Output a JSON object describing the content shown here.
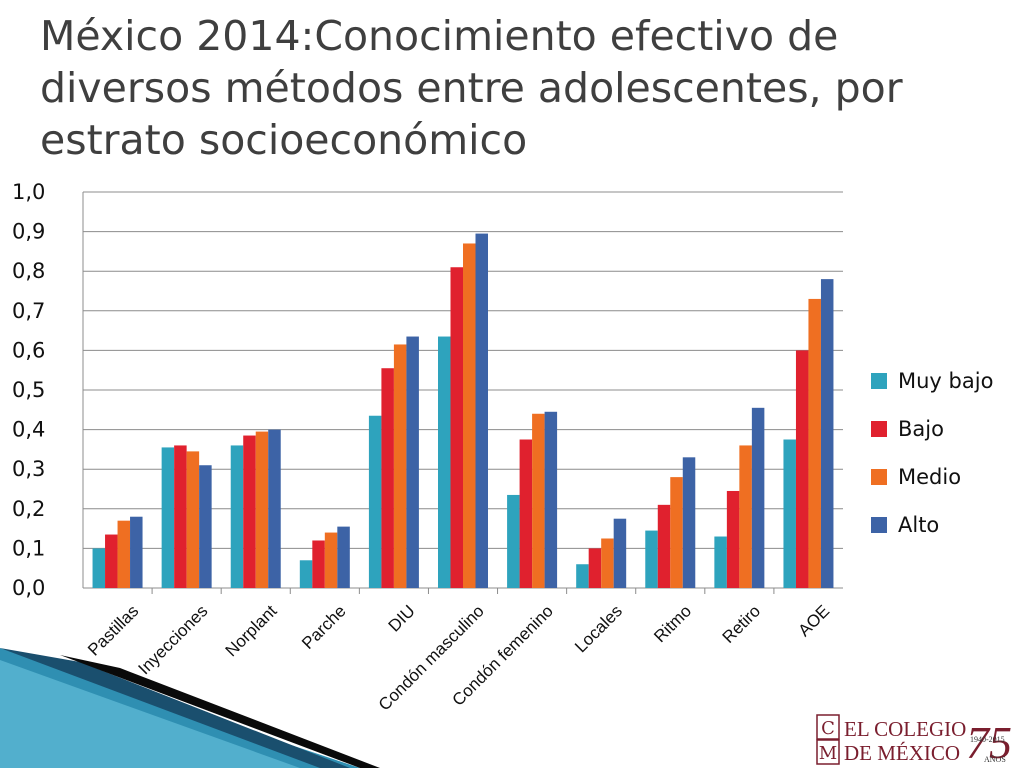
{
  "slide": {
    "title": "México 2014:Conocimiento efectivo de diversos métodos entre adolescentes, por estrato socioeconómico"
  },
  "chart_data": {
    "type": "bar",
    "title": "",
    "xlabel": "",
    "ylabel": "",
    "ylim": [
      0,
      1.0
    ],
    "yticks": [
      "0,0",
      "0,1",
      "0,2",
      "0,3",
      "0,4",
      "0,5",
      "0,6",
      "0,7",
      "0,8",
      "0,9",
      "1,0"
    ],
    "grid": true,
    "legend_position": "right",
    "categories": [
      "Pastillas",
      "Inyecciones",
      "Norplant",
      "Parche",
      "DIU",
      "Condón masculino",
      "Condón femenino",
      "Locales",
      "Ritmo",
      "Retiro",
      "AOE"
    ],
    "series": [
      {
        "name": "Muy bajo",
        "color": "#2ea3bd",
        "values": [
          0.1,
          0.355,
          0.36,
          0.07,
          0.435,
          0.635,
          0.235,
          0.06,
          0.145,
          0.13,
          0.375
        ]
      },
      {
        "name": "Bajo",
        "color": "#e0212e",
        "values": [
          0.135,
          0.36,
          0.385,
          0.12,
          0.555,
          0.81,
          0.375,
          0.1,
          0.21,
          0.245,
          0.6
        ]
      },
      {
        "name": "Medio",
        "color": "#ef6f22",
        "values": [
          0.17,
          0.345,
          0.395,
          0.14,
          0.615,
          0.87,
          0.44,
          0.125,
          0.28,
          0.36,
          0.73
        ]
      },
      {
        "name": "Alto",
        "color": "#3d63a6",
        "values": [
          0.18,
          0.31,
          0.4,
          0.155,
          0.635,
          0.895,
          0.445,
          0.175,
          0.33,
          0.455,
          0.78
        ]
      }
    ]
  },
  "logo": {
    "monogram_top": "C",
    "monogram_bottom": "M",
    "line1": "EL COLEGIO",
    "line2": "DE MÉXICO",
    "anniversary": "75",
    "years": "1940-2015",
    "years_word": "AÑOS"
  },
  "colors": {
    "title": "#3f3f3f",
    "axis": "#8c8c8c",
    "grid": "#8c8c8c",
    "logo": "#7a1e2e"
  }
}
